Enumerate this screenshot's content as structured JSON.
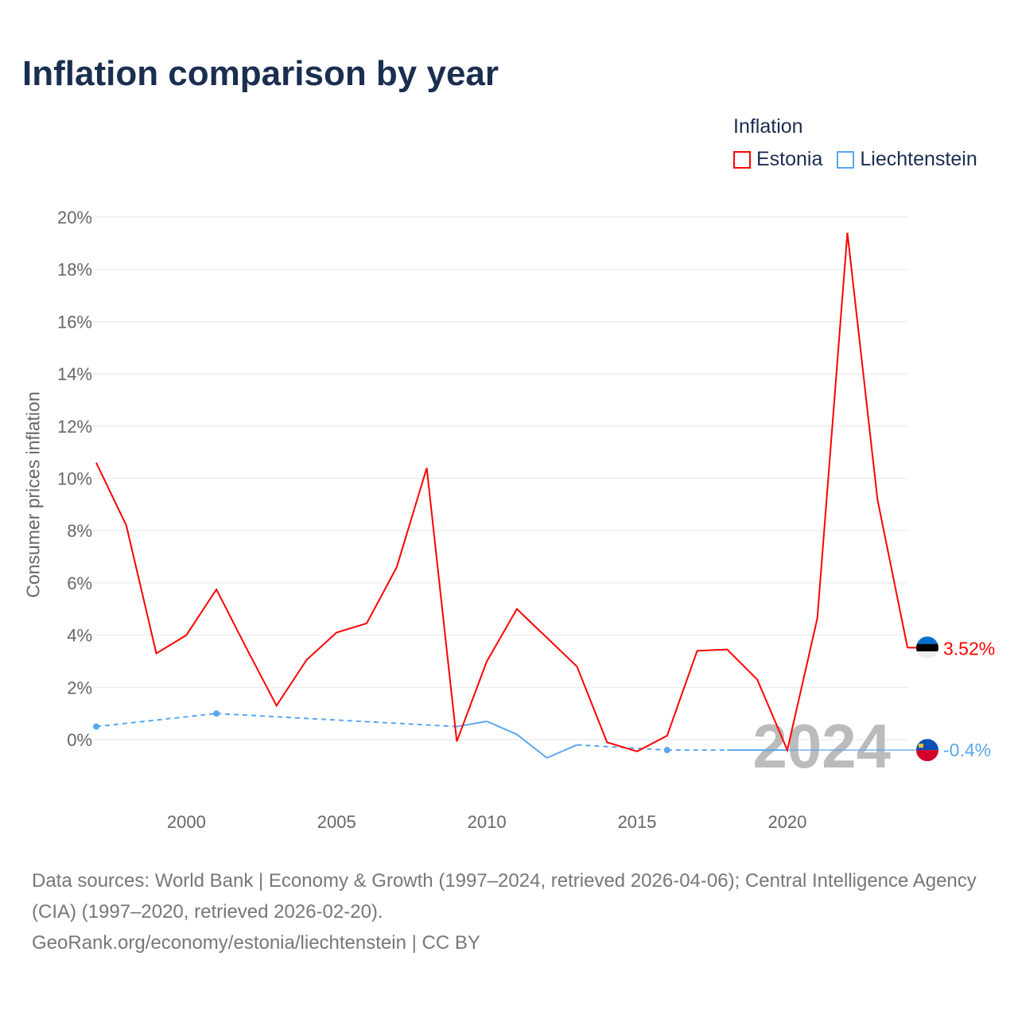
{
  "title": "Inflation comparison by year",
  "legend": {
    "title": "Inflation",
    "items": [
      "Estonia",
      "Liechtenstein"
    ]
  },
  "footer": {
    "line1": "Data sources: World Bank | Economy & Growth (1997–2024, retrieved 2026-04-06); Central Intelligence Agency (CIA) (1997–2020, retrieved 2026-02-20).",
    "line2": "GeoRank.org/economy/estonia/liechtenstein | CC BY"
  },
  "chart_data": {
    "type": "line",
    "title": "Inflation comparison by year",
    "xlabel": "",
    "ylabel": "Consumer prices inflation",
    "xlim": [
      1997,
      2024
    ],
    "ylim": [
      -2,
      20
    ],
    "yticks": [
      0,
      2,
      4,
      6,
      8,
      10,
      12,
      14,
      16,
      18,
      20
    ],
    "ytick_labels": [
      "0%",
      "2%",
      "4%",
      "6%",
      "8%",
      "10%",
      "12%",
      "14%",
      "16%",
      "18%",
      "20%"
    ],
    "xticks": [
      2000,
      2005,
      2010,
      2015,
      2020
    ],
    "xtick_labels": [
      "2000",
      "2005",
      "2010",
      "2015",
      "2020"
    ],
    "year_watermark": "2024",
    "series": [
      {
        "name": "Estonia",
        "color": "#ff0000",
        "end_label": "3.52%",
        "x": [
          1997,
          1998,
          1999,
          2000,
          2001,
          2002,
          2003,
          2004,
          2005,
          2006,
          2007,
          2008,
          2009,
          2010,
          2011,
          2012,
          2013,
          2014,
          2015,
          2016,
          2017,
          2018,
          2019,
          2020,
          2021,
          2022,
          2023,
          2024
        ],
        "y": [
          10.6,
          8.2,
          3.3,
          4.0,
          5.75,
          3.5,
          1.3,
          3.05,
          4.1,
          4.45,
          6.6,
          10.4,
          -0.07,
          3.0,
          5.0,
          3.9,
          2.8,
          -0.1,
          -0.45,
          0.15,
          3.4,
          3.45,
          2.3,
          -0.4,
          4.65,
          19.4,
          9.2,
          3.52
        ]
      },
      {
        "name": "Liechtenstein",
        "color": "#5aa6ee",
        "end_label": "-0.4%",
        "x": [
          1997,
          2001,
          2009,
          2010,
          2011,
          2012,
          2013,
          2016,
          2018,
          2019,
          2020
        ],
        "y": [
          0.5,
          1.0,
          0.5,
          0.7,
          0.2,
          -0.7,
          -0.2,
          -0.4,
          -0.4,
          -0.4,
          -0.4
        ]
      }
    ]
  }
}
